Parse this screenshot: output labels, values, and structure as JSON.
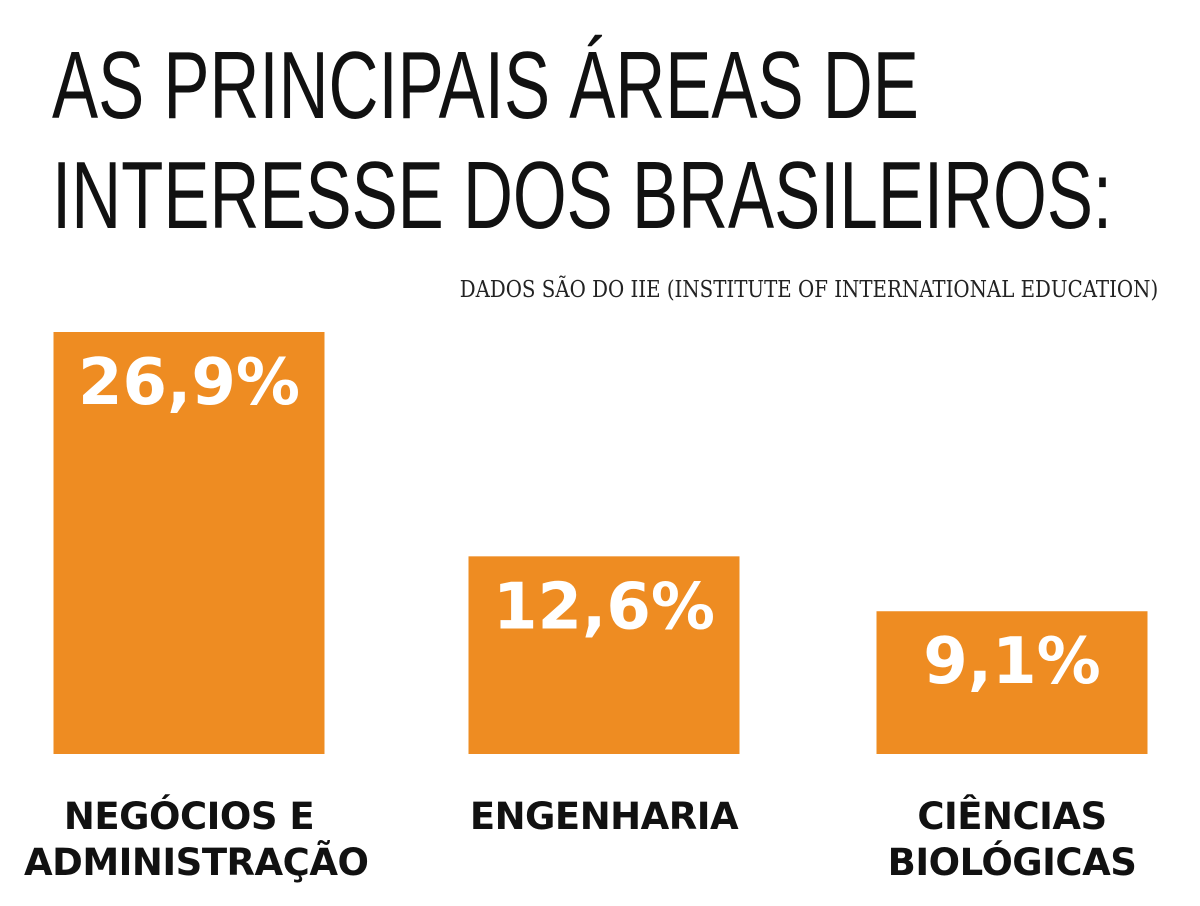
{
  "title_lines": [
    "AS PRINCIPAIS ÁREAS DE",
    "INTERESSE DOS BRASILEIROS:"
  ],
  "subtitle": "DADOS SÃO DO IIE (INSTITUTE OF INTERNATIONAL EDUCATION)",
  "colors": {
    "bar": "#ee8c22",
    "bar_label": "#ffffff",
    "text": "#111111"
  },
  "chart_data": {
    "type": "bar",
    "title": "AS PRINCIPAIS ÁREAS DE INTERESSE DOS BRASILEIROS:",
    "subtitle": "DADOS SÃO DO IIE (INSTITUTE OF INTERNATIONAL EDUCATION)",
    "categories": [
      "NEGÓCIOS E ADMINISTRAÇÃO",
      "ENGENHARIA",
      "CIÊNCIAS BIOLÓGICAS"
    ],
    "category_labels": [
      "NEGÓCIOS E\nADMINISTRAÇÃO",
      "ENGENHARIA",
      "CIÊNCIAS\nBIOLÓGICAS"
    ],
    "values": [
      26.9,
      12.6,
      9.1
    ],
    "data_labels": [
      "26,9%",
      "12,6%",
      "9,1%"
    ],
    "unit": "%",
    "xlabel": "",
    "ylabel": "",
    "ylim": [
      0,
      26.9
    ],
    "grid": false,
    "legend": "none"
  }
}
